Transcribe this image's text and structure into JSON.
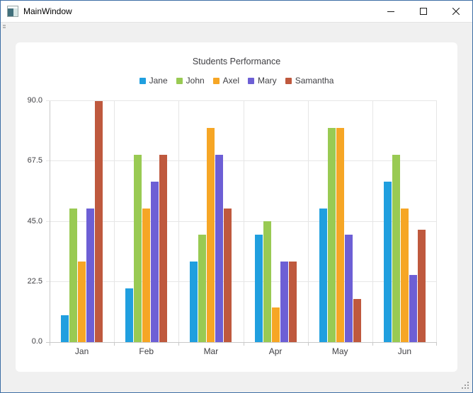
{
  "window": {
    "title": "MainWindow",
    "controls": {
      "minimize": "minimize-icon",
      "maximize": "maximize-icon",
      "close": "close-icon"
    }
  },
  "colors": {
    "window_border": "#3d6ea5",
    "titlebar_bg": "#ffffff",
    "content_bg": "#f0f0f0",
    "chart_bg": "#ffffff",
    "text": "#404044",
    "gridline": "#e6e6e6",
    "axis_line": "#c9c9c9"
  },
  "chart_data": {
    "type": "bar",
    "title": "Students Performance",
    "categories": [
      "Jan",
      "Feb",
      "Mar",
      "Apr",
      "May",
      "Jun"
    ],
    "series": [
      {
        "name": "Jane",
        "color": "#209fdf",
        "values": [
          10,
          20,
          30,
          40,
          50,
          60
        ]
      },
      {
        "name": "John",
        "color": "#99ca53",
        "values": [
          50,
          70,
          40,
          45,
          80,
          70
        ]
      },
      {
        "name": "Axel",
        "color": "#f6a625",
        "values": [
          30,
          50,
          80,
          13,
          80,
          50
        ]
      },
      {
        "name": "Mary",
        "color": "#6d5fd5",
        "values": [
          50,
          60,
          70,
          30,
          40,
          25
        ]
      },
      {
        "name": "Samantha",
        "color": "#bf593e",
        "values": [
          90,
          70,
          50,
          30,
          16,
          42
        ]
      }
    ],
    "ylim": [
      0,
      90
    ],
    "yticks": [
      0,
      22.5,
      45,
      67.5,
      90
    ],
    "ytick_labels": [
      "0.0",
      "22.5",
      "45.0",
      "67.5",
      "90.0"
    ],
    "legend_position": "top",
    "grid": true
  }
}
